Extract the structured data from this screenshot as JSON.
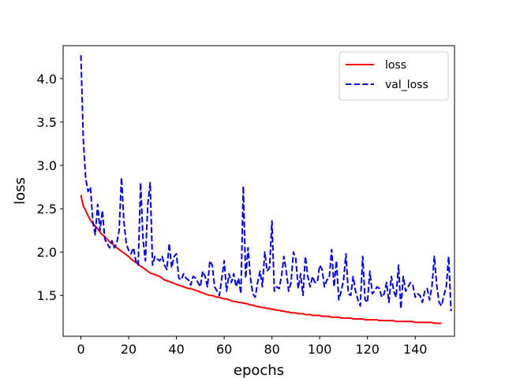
{
  "chart_data": {
    "type": "line",
    "xlabel": "epochs",
    "ylabel": "loss",
    "xlim": [
      -7.45,
      156.45
    ],
    "ylim": [
      1.03,
      4.38
    ],
    "xticks": [
      0,
      20,
      40,
      60,
      80,
      100,
      120,
      140
    ],
    "yticks": [
      1.5,
      2.0,
      2.5,
      3.0,
      3.5,
      4.0
    ],
    "xtick_labels": [
      "0",
      "20",
      "40",
      "60",
      "80",
      "100",
      "120",
      "140"
    ],
    "ytick_labels": [
      "1.5",
      "2.0",
      "2.5",
      "3.0",
      "3.5",
      "4.0"
    ],
    "grid": false,
    "legend_position": "top-right",
    "series": [
      {
        "name": "loss",
        "color": "#ff0000",
        "style": "solid",
        "values": [
          2.66,
          2.53,
          2.48,
          2.42,
          2.37,
          2.33,
          2.3,
          2.27,
          2.23,
          2.2,
          2.18,
          2.15,
          2.12,
          2.1,
          2.08,
          2.05,
          2.03,
          2.01,
          1.99,
          1.97,
          1.95,
          1.92,
          1.9,
          1.88,
          1.86,
          1.84,
          1.82,
          1.8,
          1.78,
          1.76,
          1.75,
          1.74,
          1.73,
          1.72,
          1.7,
          1.68,
          1.67,
          1.66,
          1.65,
          1.64,
          1.63,
          1.62,
          1.61,
          1.6,
          1.59,
          1.58,
          1.58,
          1.57,
          1.56,
          1.55,
          1.54,
          1.53,
          1.52,
          1.51,
          1.5,
          1.5,
          1.49,
          1.48,
          1.48,
          1.47,
          1.46,
          1.46,
          1.45,
          1.44,
          1.43,
          1.43,
          1.42,
          1.42,
          1.41,
          1.41,
          1.4,
          1.39,
          1.39,
          1.38,
          1.37,
          1.37,
          1.36,
          1.36,
          1.35,
          1.35,
          1.34,
          1.34,
          1.33,
          1.33,
          1.32,
          1.32,
          1.31,
          1.31,
          1.3,
          1.3,
          1.3,
          1.29,
          1.29,
          1.29,
          1.28,
          1.28,
          1.28,
          1.27,
          1.27,
          1.27,
          1.27,
          1.26,
          1.26,
          1.26,
          1.26,
          1.25,
          1.25,
          1.25,
          1.25,
          1.24,
          1.24,
          1.24,
          1.24,
          1.24,
          1.23,
          1.23,
          1.23,
          1.23,
          1.23,
          1.22,
          1.22,
          1.22,
          1.22,
          1.22,
          1.22,
          1.21,
          1.21,
          1.21,
          1.21,
          1.21,
          1.21,
          1.21,
          1.2,
          1.2,
          1.2,
          1.2,
          1.2,
          1.2,
          1.2,
          1.2,
          1.19,
          1.19,
          1.19,
          1.19,
          1.19,
          1.19,
          1.19,
          1.19,
          1.18,
          1.18,
          1.18,
          1.18
        ]
      },
      {
        "name": "val_loss",
        "color": "#0000ff",
        "style": "dashed",
        "values": [
          4.27,
          3.3,
          2.85,
          2.7,
          2.75,
          2.35,
          2.2,
          2.55,
          2.25,
          2.48,
          2.15,
          2.1,
          2.05,
          2.13,
          2.05,
          2.1,
          2.25,
          2.86,
          2.35,
          2.1,
          2.02,
          1.98,
          2.05,
          1.9,
          1.85,
          2.8,
          2.15,
          1.9,
          2.55,
          2.8,
          1.85,
          1.95,
          1.92,
          1.9,
          1.95,
          1.85,
          1.8,
          2.1,
          1.82,
          1.95,
          1.98,
          1.7,
          1.68,
          1.75,
          1.7,
          1.68,
          1.62,
          1.72,
          1.7,
          1.65,
          1.6,
          1.78,
          1.72,
          1.6,
          1.9,
          1.85,
          1.6,
          1.55,
          1.5,
          1.7,
          1.9,
          1.55,
          1.75,
          1.65,
          1.75,
          1.6,
          1.7,
          1.52,
          2.76,
          1.7,
          2.05,
          1.7,
          1.52,
          1.48,
          1.65,
          1.78,
          1.6,
          2.0,
          1.78,
          1.82,
          2.36,
          1.55,
          1.6,
          1.58,
          1.72,
          1.95,
          1.78,
          1.55,
          1.65,
          2.0,
          1.92,
          1.58,
          1.75,
          1.5,
          1.95,
          1.72,
          1.6,
          1.72,
          1.65,
          1.65,
          1.85,
          1.8,
          1.6,
          1.68,
          1.7,
          2.03,
          1.6,
          1.9,
          1.45,
          1.55,
          1.68,
          1.98,
          1.52,
          1.5,
          1.72,
          1.55,
          1.45,
          1.38,
          1.95,
          1.45,
          1.42,
          1.78,
          1.52,
          1.55,
          1.6,
          1.58,
          1.48,
          1.52,
          1.65,
          1.42,
          1.72,
          1.55,
          1.48,
          1.85,
          1.35,
          1.72,
          1.55,
          1.6,
          1.65,
          1.62,
          1.48,
          1.52,
          1.5,
          1.42,
          1.55,
          1.58,
          1.45,
          1.6,
          1.95,
          1.62,
          1.42,
          1.38,
          1.5,
          1.6,
          1.95,
          1.32
        ]
      }
    ]
  }
}
